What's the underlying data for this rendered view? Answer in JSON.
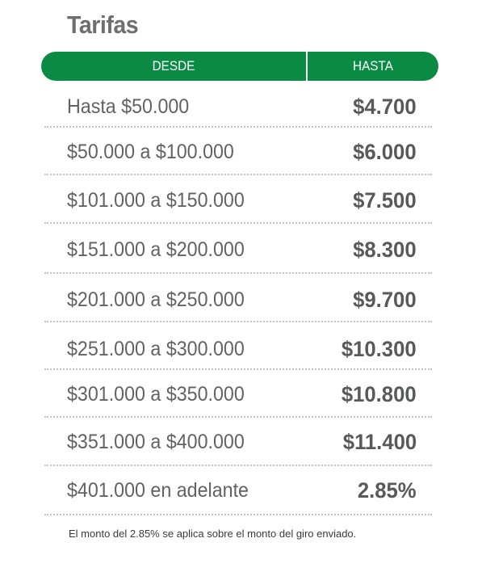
{
  "title": "Tarifas",
  "header": {
    "desde": "DESDE",
    "hasta": "HASTA"
  },
  "colors": {
    "header_green": "#0b8a44",
    "text_gray": "#58595b",
    "separator": "#c4c4c4"
  },
  "rows": [
    {
      "desde": "Hasta $50.000",
      "hasta": "$4.700"
    },
    {
      "desde": "$50.000 a $100.000",
      "hasta": "$6.000"
    },
    {
      "desde": "$101.000 a $150.000",
      "hasta": "$7.500"
    },
    {
      "desde": "$151.000 a $200.000",
      "hasta": "$8.300"
    },
    {
      "desde": "$201.000 a $250.000",
      "hasta": "$9.700"
    },
    {
      "desde": "$251.000 a $300.000",
      "hasta": "$10.300"
    },
    {
      "desde": "$301.000 a $350.000",
      "hasta": "$10.800"
    },
    {
      "desde": "$351.000 a $400.000",
      "hasta": "$11.400"
    },
    {
      "desde": "$401.000 en adelante",
      "hasta": "2.85%"
    }
  ],
  "footnote": "El monto del 2.85% se aplica sobre el monto del giro enviado."
}
